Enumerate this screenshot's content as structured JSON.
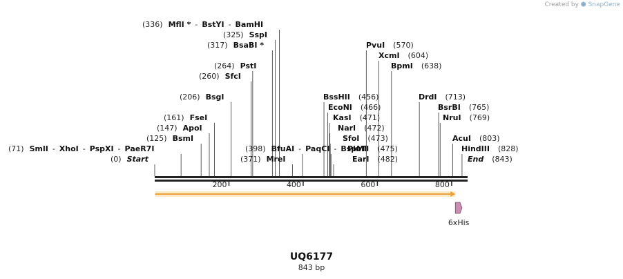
{
  "credit": {
    "prefix": "Created by",
    "brand": "SnapGene"
  },
  "plasmid": {
    "name": "UQ6177",
    "length_label": "843 bp",
    "length": 843
  },
  "axis": {
    "ticks": [
      200,
      400,
      600,
      800
    ]
  },
  "features": [
    {
      "name": "",
      "type": "arrow",
      "start": 1,
      "end": 810,
      "color": "#e8a33c"
    },
    {
      "name": "6xHis",
      "type": "tag",
      "start": 810,
      "end": 828,
      "color": "#c98fb3"
    }
  ],
  "sites": [
    {
      "pos": 0,
      "label": "(0)",
      "names": [
        "Start"
      ],
      "italic": true,
      "line": true
    },
    {
      "pos": 71,
      "label": "(71)",
      "names": [
        "SmlI",
        "XhoI",
        "PspXI",
        "PaeR7I"
      ],
      "line": true
    },
    {
      "pos": 125,
      "label": "(125)",
      "names": [
        "BsmI"
      ],
      "line": true
    },
    {
      "pos": 147,
      "label": "(147)",
      "names": [
        "ApoI"
      ],
      "line": true
    },
    {
      "pos": 161,
      "label": "(161)",
      "names": [
        "FseI"
      ],
      "line": true
    },
    {
      "pos": 206,
      "label": "(206)",
      "names": [
        "BsgI"
      ],
      "line": true
    },
    {
      "pos": 260,
      "label": "(260)",
      "names": [
        "SfcI"
      ],
      "line": true
    },
    {
      "pos": 264,
      "label": "(264)",
      "names": [
        "PstI"
      ],
      "line": true
    },
    {
      "pos": 317,
      "label": "(317)",
      "names": [
        "BsaBI *"
      ],
      "line": true
    },
    {
      "pos": 325,
      "label": "(325)",
      "names": [
        "SspI"
      ],
      "line": true
    },
    {
      "pos": 336,
      "label": "(336)",
      "names": [
        "MflI *",
        "BstYI",
        "BamHI"
      ],
      "line": true
    },
    {
      "pos": 371,
      "label": "(371)",
      "names": [
        "MreI"
      ],
      "line": true
    },
    {
      "pos": 398,
      "label": "(398)",
      "names": [
        "BfuAI",
        "PaqCI",
        "BspMI"
      ],
      "line": true
    },
    {
      "pos": 456,
      "label": "(456)",
      "names": [
        "BssHII"
      ],
      "line": true
    },
    {
      "pos": 466,
      "label": "(466)",
      "names": [
        "EcoNI"
      ],
      "line": true
    },
    {
      "pos": 471,
      "label": "(471)",
      "names": [
        "KasI"
      ],
      "line": true
    },
    {
      "pos": 472,
      "label": "(472)",
      "names": [
        "NarI"
      ],
      "line": true
    },
    {
      "pos": 473,
      "label": "(473)",
      "names": [
        "SfoI"
      ],
      "line": true
    },
    {
      "pos": 475,
      "label": "(475)",
      "names": [
        "PluTI"
      ],
      "line": true
    },
    {
      "pos": 482,
      "label": "(482)",
      "names": [
        "EarI"
      ],
      "line": true
    },
    {
      "pos": 570,
      "label": "(570)",
      "names": [
        "PvuI"
      ],
      "line": true
    },
    {
      "pos": 604,
      "label": "(604)",
      "names": [
        "XcmI"
      ],
      "line": true
    },
    {
      "pos": 638,
      "label": "(638)",
      "names": [
        "BpmI"
      ],
      "line": true
    },
    {
      "pos": 713,
      "label": "(713)",
      "names": [
        "DrdI"
      ],
      "line": true
    },
    {
      "pos": 765,
      "label": "(765)",
      "names": [
        "BsrBI"
      ],
      "line": true
    },
    {
      "pos": 769,
      "label": "(769)",
      "names": [
        "NruI"
      ],
      "line": true
    },
    {
      "pos": 803,
      "label": "(803)",
      "names": [
        "AcuI"
      ],
      "line": true
    },
    {
      "pos": 828,
      "label": "(828)",
      "names": [
        "HindIII"
      ],
      "line": true
    },
    {
      "pos": 843,
      "label": "(843)",
      "names": [
        "End"
      ],
      "italic": true,
      "line": false
    }
  ]
}
